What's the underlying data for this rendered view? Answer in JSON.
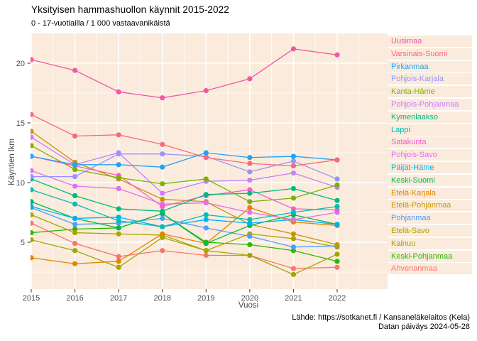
{
  "title": "Yksityisen hammashuollon käynnit 2015-2022",
  "subtitle": "0 - 17-vuotiailla / 1 000 vastaavanikäistä",
  "footer": {
    "source_line": "Lähde: https://sotkanet.fi / Kansaneläkelaitos (Kela)",
    "date_line": "Datan päiväys 2024-05-28"
  },
  "chart_data": {
    "type": "line",
    "title": "Yksityisen hammashuollon käynnit 2015-2022",
    "subtitle": "0 - 17-vuotiailla / 1 000 vastaavanikäistä",
    "xlabel": "Vuosi",
    "ylabel": "Käyntien lkm",
    "x": [
      2015,
      2016,
      2017,
      2018,
      2019,
      2020,
      2021,
      2022
    ],
    "y_ticks": [
      5,
      10,
      15,
      20
    ],
    "ylim": [
      1,
      22.5
    ],
    "grid": true,
    "legend_position": "right",
    "panel_background": "#FAEBDC",
    "grid_color": "#FFFFFF",
    "series": [
      {
        "name": "Uusimaa",
        "color": "#F158A4",
        "values": [
          20.3,
          19.4,
          17.6,
          17.1,
          17.7,
          18.7,
          21.2,
          20.7
        ]
      },
      {
        "name": "Varsinais-Suomi",
        "color": "#F9687F",
        "values": [
          15.7,
          13.9,
          14.0,
          13.2,
          12.1,
          11.6,
          11.4,
          11.9
        ]
      },
      {
        "name": "Pirkanmaa",
        "color": "#22A3F7",
        "values": [
          12.2,
          11.5,
          11.5,
          11.3,
          12.5,
          12.1,
          12.2,
          11.9
        ]
      },
      {
        "name": "Pohjois-Karjala",
        "color": "#9793FF",
        "values": [
          10.5,
          10.5,
          12.4,
          12.4,
          12.2,
          10.9,
          11.8,
          10.3
        ]
      },
      {
        "name": "Kanta-Häme",
        "color": "#7FB000",
        "values": [
          13.1,
          11.1,
          10.4,
          9.9,
          10.3,
          8.4,
          8.7,
          9.8
        ]
      },
      {
        "name": "Pohjois-Pohjanmaa",
        "color": "#C77EFF",
        "values": [
          13.8,
          11.5,
          12.5,
          9.1,
          10.1,
          10.2,
          10.8,
          9.6
        ]
      },
      {
        "name": "Kymenlaakso",
        "color": "#00BB7E",
        "values": [
          10.3,
          8.9,
          7.8,
          7.6,
          9.0,
          9.1,
          9.5,
          8.5
        ]
      },
      {
        "name": "Lappi",
        "color": "#00BFB4",
        "values": [
          9.4,
          8.2,
          6.8,
          6.3,
          7.3,
          6.9,
          7.5,
          8.0
        ]
      },
      {
        "name": "Satakunta",
        "color": "#F75EC8",
        "values": [
          12.2,
          11.4,
          10.6,
          8.0,
          8.9,
          9.4,
          7.8,
          7.7
        ]
      },
      {
        "name": "Pohjois-Savo",
        "color": "#E26EF2",
        "values": [
          11.0,
          9.7,
          9.5,
          8.2,
          8.3,
          7.5,
          6.9,
          7.5
        ]
      },
      {
        "name": "Päijät-Häme",
        "color": "#00B0F6",
        "values": [
          8.0,
          7.0,
          7.1,
          6.3,
          6.9,
          6.6,
          6.9,
          6.5
        ]
      },
      {
        "name": "Keski-Suomi",
        "color": "#00B94E",
        "values": [
          8.4,
          7.0,
          6.2,
          7.4,
          4.9,
          6.4,
          7.3,
          6.5
        ]
      },
      {
        "name": "Etelä-Karjala",
        "color": "#E08500",
        "values": [
          3.7,
          3.2,
          3.4,
          5.7,
          4.9,
          7.9,
          6.7,
          6.4
        ]
      },
      {
        "name": "Etelä-Pohjanmaa",
        "color": "#CB9500",
        "values": [
          14.3,
          11.7,
          10.3,
          8.6,
          8.4,
          6.5,
          5.7,
          4.8
        ]
      },
      {
        "name": "Pohjanmaa",
        "color": "#4E9EFB",
        "values": [
          7.9,
          6.5,
          6.6,
          7.0,
          6.2,
          5.5,
          4.6,
          4.7
        ]
      },
      {
        "name": "Etelä-Savo",
        "color": "#ACA400",
        "values": [
          7.3,
          5.8,
          5.7,
          5.6,
          4.3,
          5.7,
          5.3,
          4.6
        ]
      },
      {
        "name": "Kainuu",
        "color": "#9FA700",
        "values": [
          5.2,
          4.3,
          2.9,
          5.4,
          4.3,
          3.9,
          2.3,
          4.0
        ]
      },
      {
        "name": "Keski-Pohjanmaa",
        "color": "#2FB800",
        "values": [
          5.8,
          6.1,
          6.2,
          7.4,
          5.0,
          4.8,
          4.3,
          3.4
        ]
      },
      {
        "name": "Ahvenanmaa",
        "color": "#F8766D",
        "values": [
          6.6,
          4.9,
          3.8,
          4.3,
          3.9,
          3.9,
          2.8,
          2.9
        ]
      }
    ]
  }
}
